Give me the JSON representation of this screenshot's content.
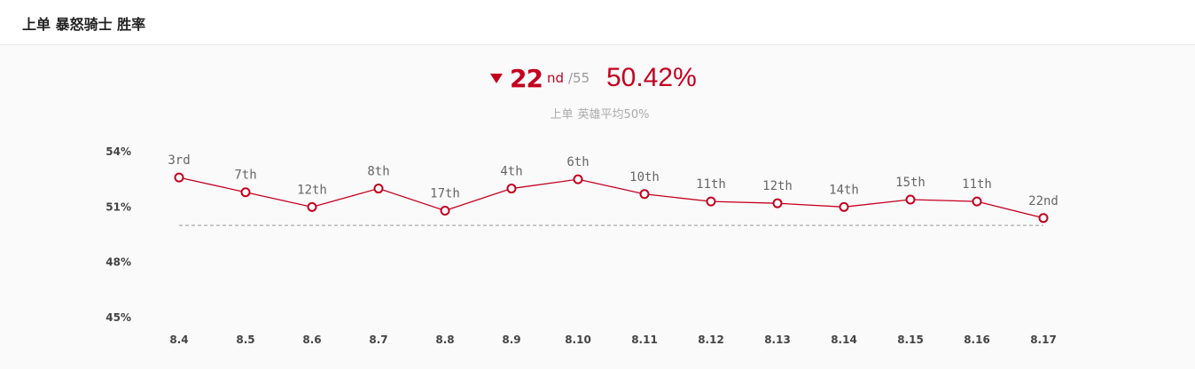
{
  "header": {
    "title": "上单 暴怒骑士 胜率"
  },
  "summary": {
    "rank": "22",
    "rank_suffix": "nd",
    "rank_total": "/55",
    "win_rate": "50.42%",
    "trend": "down",
    "subtitle_role": "上单",
    "subtitle_avg": "英雄平均50%"
  },
  "colors": {
    "accent": "#c4001f",
    "reference_line": "#aaaaaa"
  },
  "chart_data": {
    "type": "line",
    "title": "",
    "xlabel": "",
    "ylabel": "",
    "categories": [
      "8.4",
      "8.5",
      "8.6",
      "8.7",
      "8.8",
      "8.9",
      "8.10",
      "8.11",
      "8.12",
      "8.13",
      "8.14",
      "8.15",
      "8.16",
      "8.17"
    ],
    "series": [
      {
        "values": [
          52.6,
          51.8,
          51.0,
          52.0,
          50.8,
          52.0,
          52.5,
          51.7,
          51.3,
          51.2,
          51.0,
          51.4,
          51.3,
          50.4
        ],
        "labels": [
          "3rd",
          "7th",
          "12th",
          "8th",
          "17th",
          "4th",
          "6th",
          "10th",
          "11th",
          "12th",
          "14th",
          "15th",
          "11th",
          "22nd"
        ]
      }
    ],
    "reference_line": 50,
    "ylim": [
      45,
      54
    ],
    "yticks": [
      54,
      51,
      48,
      45
    ],
    "ytick_labels": [
      "54%",
      "51%",
      "48%",
      "45%"
    ],
    "grid": false,
    "legend": "none"
  }
}
